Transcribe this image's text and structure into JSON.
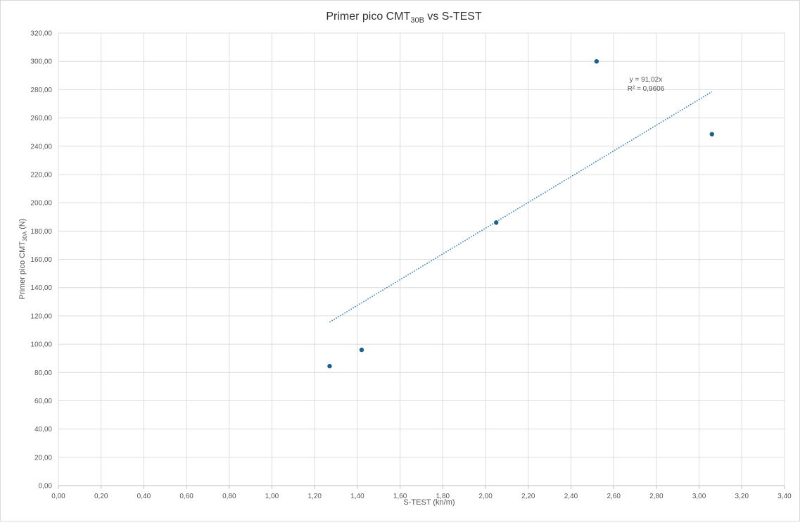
{
  "chart_data": {
    "type": "scatter",
    "title": {
      "main": "Primer pico CMT",
      "sub": "30B",
      "rest": " vs S-TEST"
    },
    "xlabel": "S-TEST  (kn/m)",
    "ylabel": {
      "main": "Primer pico CMT",
      "sub": "30A",
      "rest": " (N)"
    },
    "xlim": [
      0,
      3.4
    ],
    "ylim": [
      0,
      320
    ],
    "x_ticks": [
      0,
      0.2,
      0.4,
      0.6,
      0.8,
      1.0,
      1.2,
      1.4,
      1.6,
      1.8,
      2.0,
      2.2,
      2.4,
      2.6,
      2.8,
      3.0,
      3.2,
      3.4
    ],
    "x_tick_labels": [
      "0,00",
      "0,20",
      "0,40",
      "0,60",
      "0,80",
      "1,00",
      "1,20",
      "1,40",
      "1,60",
      "1,80",
      "2,00",
      "2,20",
      "2,40",
      "2,60",
      "2,80",
      "3,00",
      "3,20",
      "3,40"
    ],
    "y_ticks": [
      0,
      20,
      40,
      60,
      80,
      100,
      120,
      140,
      160,
      180,
      200,
      220,
      240,
      260,
      280,
      300,
      320
    ],
    "y_tick_labels": [
      "0,00",
      "20,00",
      "40,00",
      "60,00",
      "80,00",
      "100,00",
      "120,00",
      "140,00",
      "160,00",
      "180,00",
      "200,00",
      "220,00",
      "240,00",
      "260,00",
      "280,00",
      "300,00",
      "320,00"
    ],
    "grid": true,
    "series": [
      {
        "points": [
          {
            "x": 1.27,
            "y": 84.5
          },
          {
            "x": 1.42,
            "y": 96.0
          },
          {
            "x": 2.05,
            "y": 186.0
          },
          {
            "x": 2.52,
            "y": 300.0
          },
          {
            "x": 3.06,
            "y": 248.5
          }
        ],
        "color": "#1f5f8b"
      }
    ],
    "trendline": {
      "slope": 91.02,
      "x_range": [
        1.27,
        3.06
      ],
      "color": "#2e7fb5",
      "equation": "y = 91,02x",
      "r2": "R² = 0,9606"
    }
  }
}
